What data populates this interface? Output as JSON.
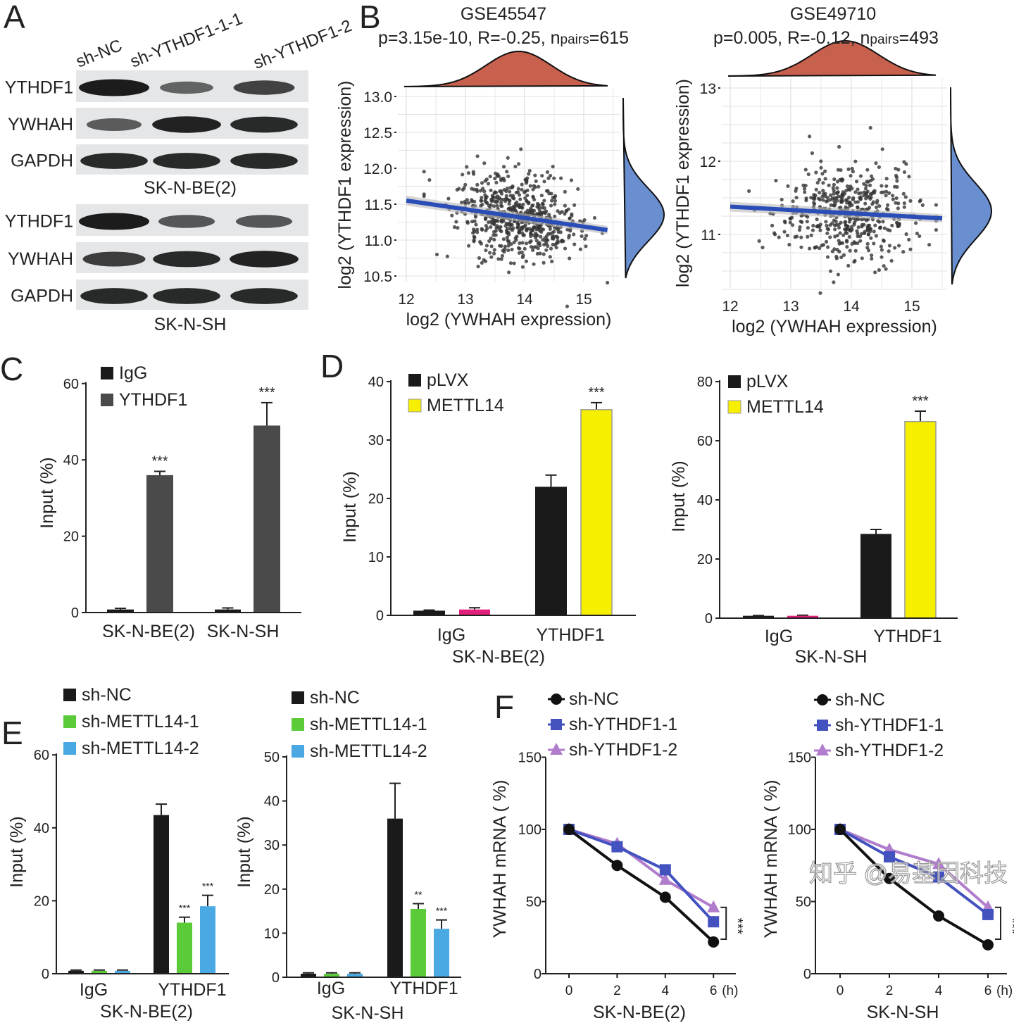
{
  "panel_letters": [
    "A",
    "B",
    "C",
    "D",
    "E",
    "F"
  ],
  "watermark": "知乎 @易基因科技",
  "colors": {
    "black": "#1a1a1a",
    "dark_gray": "#4a4a4a",
    "yellow": "#f7ef00",
    "pink": "#e2207c",
    "green": "#5ccb3a",
    "blue": "#4aa9e2",
    "line_black": "#111111",
    "line_blue": "#4452c0",
    "line_purple": "#b07ccc",
    "density_top": "#c8604e",
    "density_right": "#6a8fd0",
    "regression": "#2a4db8"
  },
  "chart_data": [
    {
      "panel": "A",
      "type": "blot",
      "lanes": [
        "sh-NC",
        "sh-YTHDF1-1-1",
        "sh-YTHDF1-2"
      ],
      "groups": [
        {
          "cell_line": "SK-N-BE(2)",
          "rows": [
            "YTHDF1",
            "YWHAH",
            "GAPDH"
          ]
        },
        {
          "cell_line": "SK-N-SH",
          "rows": [
            "YTHDF1",
            "YWHAH",
            "GAPDH"
          ]
        }
      ]
    },
    {
      "panel": "B",
      "type": "scatter",
      "title": "GSE45547",
      "subtitle": "p=3.15e-10, R=-0.25, n",
      "subtitle_sub": "pairs",
      "subtitle_end": "=615",
      "n": 615,
      "xlabel": "log2 (YWHAH expression)",
      "ylabel": "log2 (YTHDF1 expression)",
      "xticks": [
        "12",
        "13",
        "14",
        "15"
      ],
      "yticks": [
        "13.0",
        "12.5",
        "12.0",
        "11.5",
        "11.0",
        "10.5"
      ],
      "xlim": [
        11.85,
        15.6
      ],
      "ylim": [
        10.4,
        13.1
      ],
      "regression": {
        "x": [
          12,
          15.4
        ],
        "y": [
          11.55,
          11.14
        ]
      },
      "grid": true,
      "marginal_densities": true
    },
    {
      "panel": "B",
      "type": "scatter",
      "title": "GSE49710",
      "subtitle": "p=0.005, R=-0.12, n",
      "subtitle_sub": "pairs",
      "subtitle_end": "=493",
      "n": 493,
      "xlabel": "log2 (YWHAH expression)",
      "ylabel": "log2 (YTHDF1 expression)",
      "xticks": [
        "12",
        "13",
        "14",
        "15"
      ],
      "yticks": [
        "13",
        "12",
        "11"
      ],
      "xlim": [
        11.85,
        15.6
      ],
      "ylim": [
        10.2,
        13.15
      ],
      "regression": {
        "x": [
          12,
          15.5
        ],
        "y": [
          11.38,
          11.22
        ]
      },
      "grid": true,
      "marginal_densities": true
    },
    {
      "panel": "C",
      "type": "bar",
      "ylabel": "Input (%)",
      "ylim": [
        0,
        60
      ],
      "yticks": [
        0,
        20,
        40,
        60
      ],
      "categories": [
        "SK-N-BE(2)",
        "SK-N-SH"
      ],
      "xlabel": "",
      "legend": "top-left",
      "series": [
        {
          "name": "IgG",
          "values": [
            0.8,
            0.8
          ],
          "errors": [
            0.3,
            0.4
          ]
        },
        {
          "name": "YTHDF1",
          "values": [
            36,
            49
          ],
          "errors": [
            1,
            6
          ],
          "sig": [
            "***",
            "***"
          ]
        }
      ]
    },
    {
      "panel": "D",
      "type": "bar",
      "ylabel": "Input (%)",
      "ylim": [
        0,
        40
      ],
      "yticks": [
        0,
        10,
        20,
        30,
        40
      ],
      "categories": [
        "IgG",
        "YTHDF1"
      ],
      "xlabel": "SK-N-BE(2)",
      "legend": "top-left",
      "series": [
        {
          "name": "pLVX",
          "values": [
            0.8,
            22
          ],
          "errors": [
            0.1,
            2
          ]
        },
        {
          "name": "METTL14",
          "values": [
            1,
            35.2
          ],
          "errors": [
            0.3,
            1.2
          ],
          "sig": [
            "",
            "***"
          ]
        }
      ]
    },
    {
      "panel": "D",
      "type": "bar",
      "ylabel": "Input (%)",
      "ylim": [
        0,
        80
      ],
      "yticks": [
        0,
        20,
        40,
        60,
        80
      ],
      "categories": [
        "IgG",
        "YTHDF1"
      ],
      "xlabel": "SK-N-SH",
      "legend": "top-left",
      "series": [
        {
          "name": "pLVX",
          "values": [
            0.8,
            28.5
          ],
          "errors": [
            0.1,
            1.5
          ]
        },
        {
          "name": "METTL14",
          "values": [
            0.8,
            66.5
          ],
          "errors": [
            0.2,
            3.5
          ],
          "sig": [
            "",
            "***"
          ]
        }
      ]
    },
    {
      "panel": "E",
      "type": "bar",
      "ylabel": "Input (%)",
      "ylim": [
        0,
        60
      ],
      "yticks": [
        0,
        20,
        40,
        60
      ],
      "categories": [
        "IgG",
        "YTHDF1"
      ],
      "xlabel": "SK-N-BE(2)",
      "legend": "top-left",
      "series": [
        {
          "name": "sh-NC",
          "values": [
            0.8,
            43.5
          ],
          "errors": [
            0.2,
            3
          ]
        },
        {
          "name": "sh-METTL14-1",
          "values": [
            0.8,
            14
          ],
          "errors": [
            0.2,
            1.5
          ],
          "sig": [
            "",
            "***"
          ]
        },
        {
          "name": "sh-METTL14-2",
          "values": [
            0.8,
            18.5
          ],
          "errors": [
            0.2,
            3
          ],
          "sig": [
            "",
            "***"
          ]
        }
      ]
    },
    {
      "panel": "E",
      "type": "bar",
      "ylabel": "Input (%)",
      "ylim": [
        0,
        50
      ],
      "yticks": [
        0,
        10,
        20,
        30,
        40,
        50
      ],
      "categories": [
        "IgG",
        "YTHDF1"
      ],
      "xlabel": "SK-N-SH",
      "legend": "top-left",
      "series": [
        {
          "name": "sh-NC",
          "values": [
            0.8,
            36
          ],
          "errors": [
            0.2,
            8
          ]
        },
        {
          "name": "sh-METTL14-1",
          "values": [
            0.8,
            15.5
          ],
          "errors": [
            0.2,
            1.2
          ],
          "sig": [
            "",
            "**"
          ]
        },
        {
          "name": "sh-METTL14-2",
          "values": [
            0.8,
            11
          ],
          "errors": [
            0.2,
            2
          ],
          "sig": [
            "",
            "***"
          ]
        }
      ]
    },
    {
      "panel": "F",
      "type": "line",
      "ylabel": "YWHAH mRNA ( %)",
      "ylim": [
        0,
        150
      ],
      "yticks": [
        0,
        50,
        100,
        150
      ],
      "x": [
        0,
        2,
        4,
        6
      ],
      "xticks": [
        "0",
        "2",
        "4",
        "6"
      ],
      "xunit": "(h)",
      "xlabel": "SK-N-BE(2)",
      "sig": "***",
      "legend": "top-left",
      "series": [
        {
          "name": "sh-NC",
          "marker": "circle",
          "values": [
            100,
            75,
            53,
            22
          ]
        },
        {
          "name": "sh-YTHDF1-1",
          "marker": "square",
          "values": [
            100,
            88,
            72,
            36
          ]
        },
        {
          "name": "sh-YTHDF1-2",
          "marker": "triangle",
          "values": [
            100,
            90,
            65,
            46
          ]
        }
      ]
    },
    {
      "panel": "F",
      "type": "line",
      "ylabel": "YWHAH mRNA ( %)",
      "ylim": [
        0,
        150
      ],
      "yticks": [
        0,
        50,
        100,
        150
      ],
      "x": [
        0,
        2,
        4,
        6
      ],
      "xticks": [
        "0",
        "2",
        "4",
        "6"
      ],
      "xunit": "(h)",
      "xlabel": "SK-N-SH",
      "sig": "***",
      "legend": "top-left",
      "series": [
        {
          "name": "sh-NC",
          "marker": "circle",
          "values": [
            100,
            66,
            40,
            20
          ]
        },
        {
          "name": "sh-YTHDF1-1",
          "marker": "square",
          "values": [
            100,
            81,
            67,
            41
          ]
        },
        {
          "name": "sh-YTHDF1-2",
          "marker": "triangle",
          "values": [
            100,
            86,
            76,
            46
          ]
        }
      ]
    }
  ]
}
